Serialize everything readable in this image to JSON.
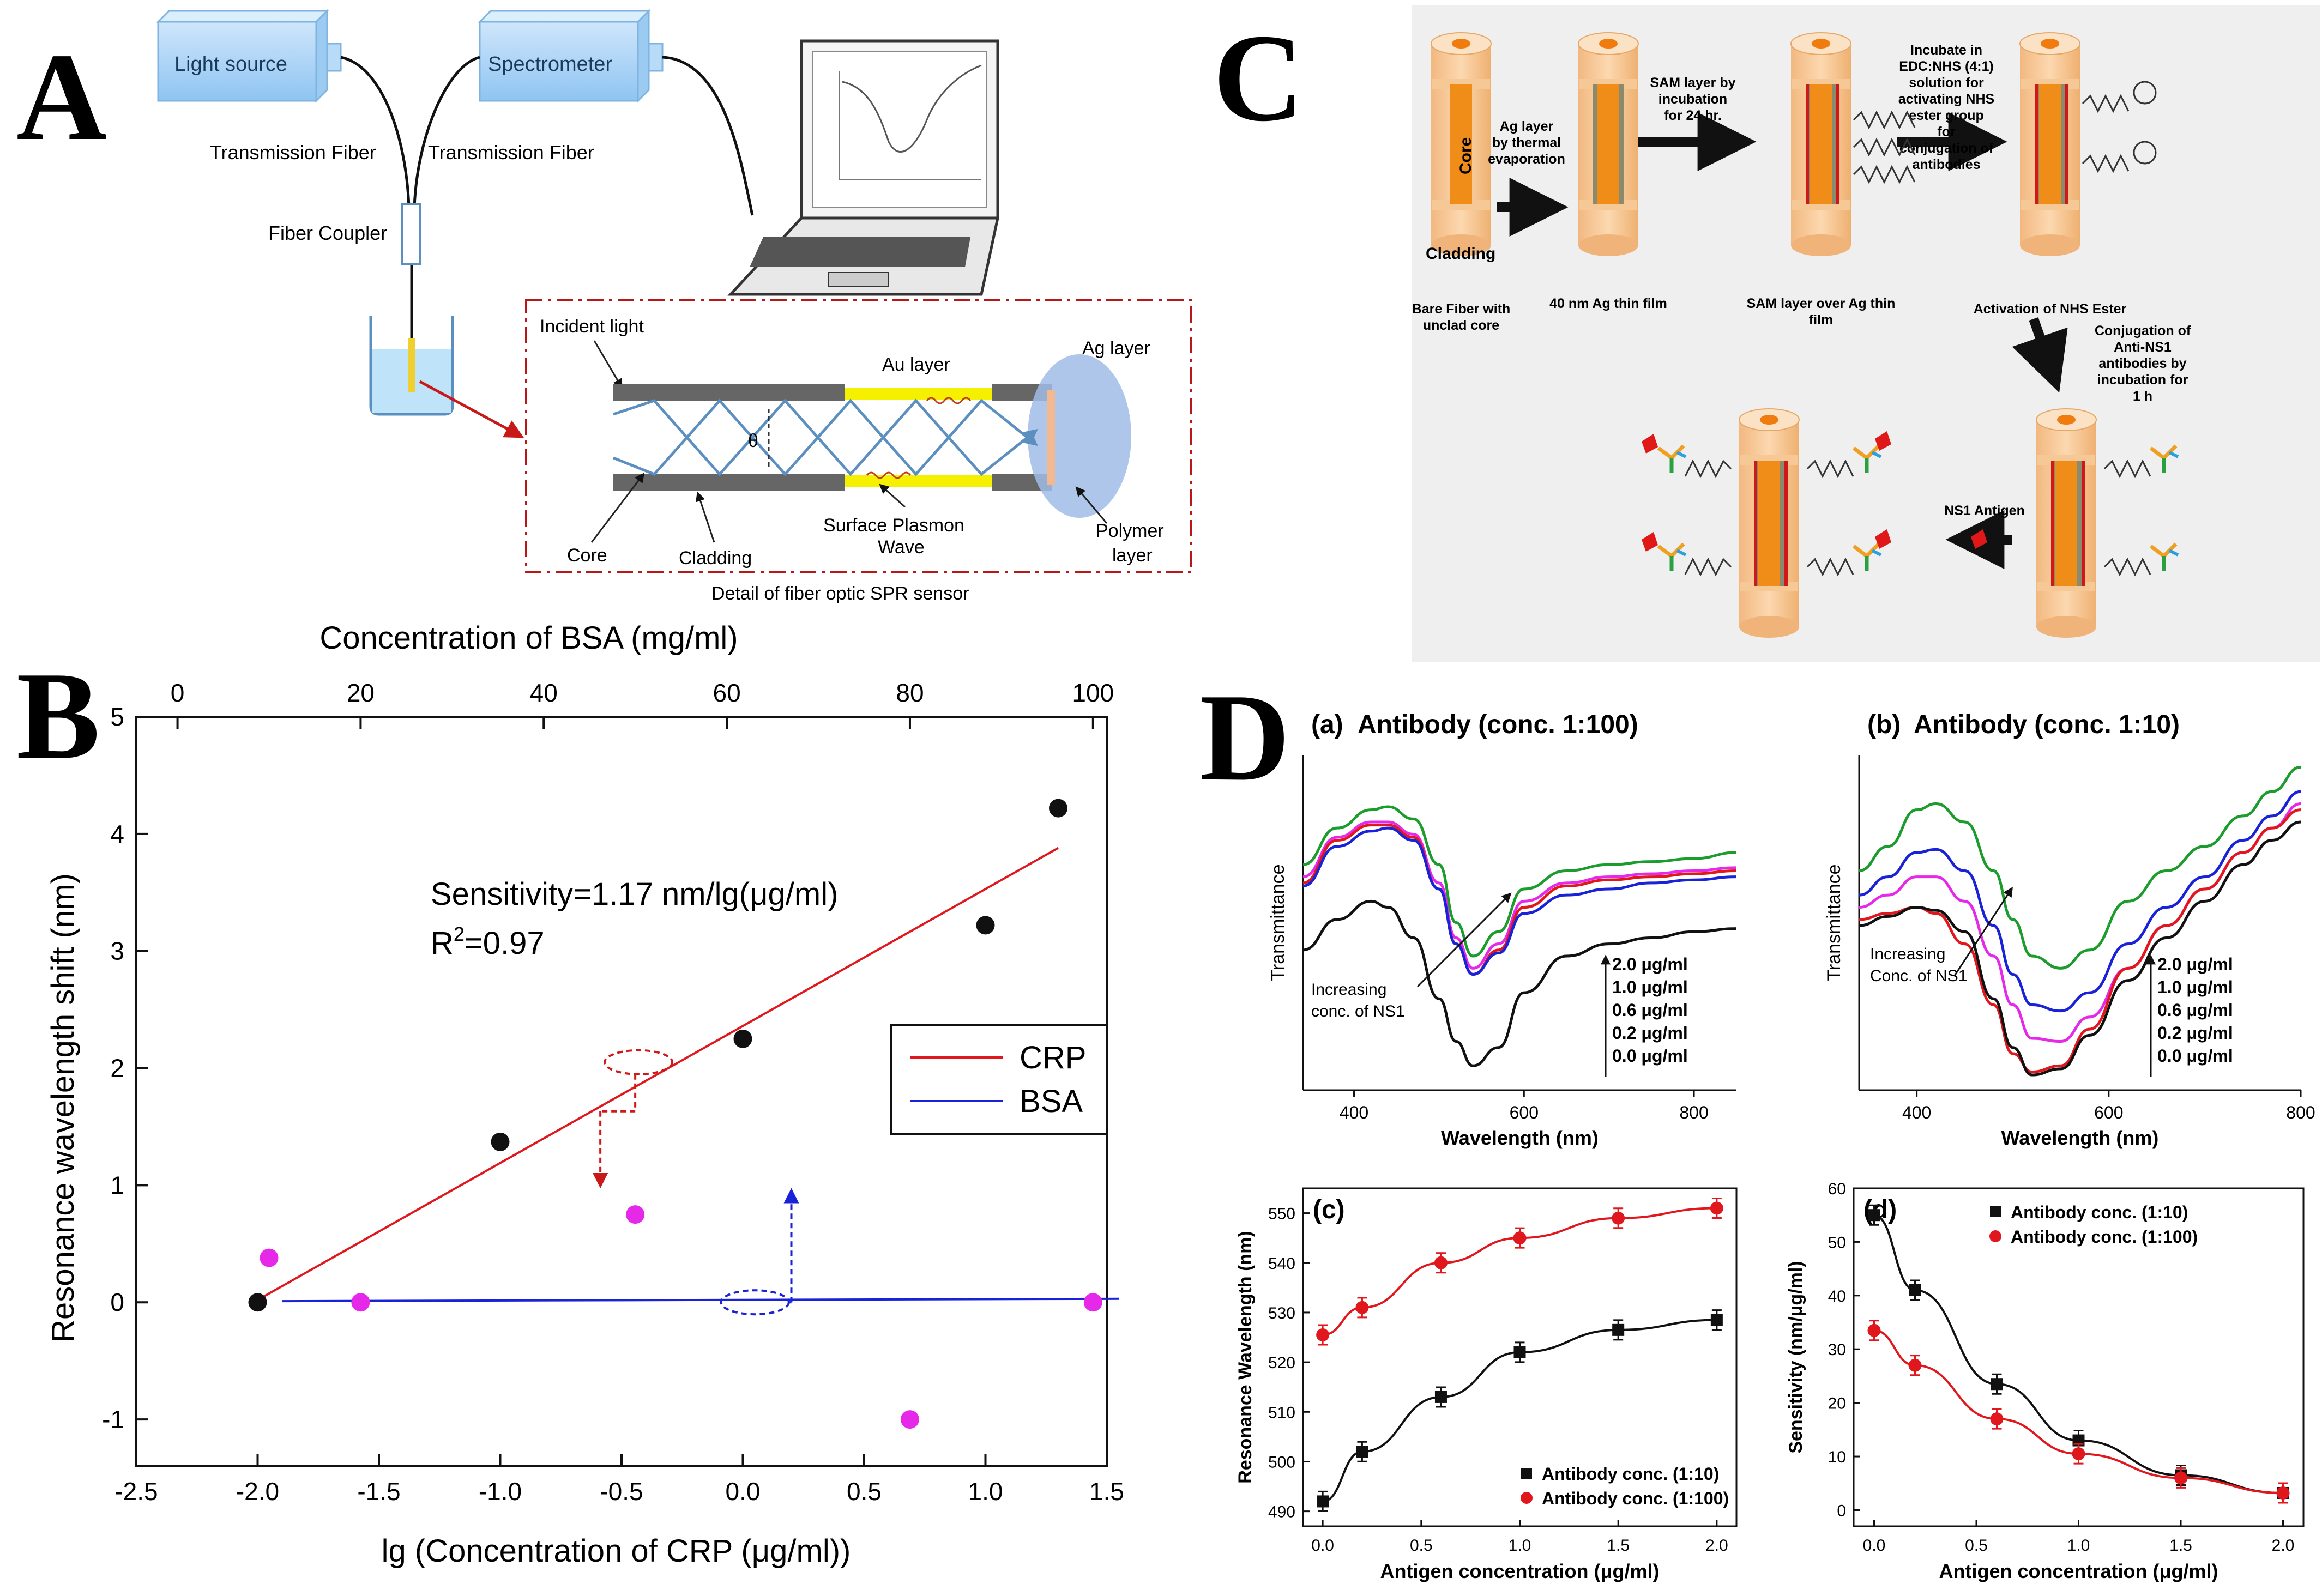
{
  "colors": {
    "red": "#e0181e",
    "black": "#111111",
    "blue": "#1a22d8",
    "magenta": "#e628e8",
    "green": "#1c9c2c",
    "orange": "#f08c18",
    "fiber": "#f8c898",
    "panel_gray": "#efefef"
  },
  "panel_letters": {
    "a": "A",
    "b": "B",
    "c": "C",
    "d": "D"
  },
  "panel_a": {
    "light_source": "Light source",
    "spectrometer": "Spectrometer",
    "transmission_fiber_left": "Transmission Fiber",
    "transmission_fiber_right": "Transmission Fiber",
    "fiber_coupler": "Fiber Coupler",
    "incident_light": "Incident light",
    "au_layer": "Au layer",
    "ag_layer": "Ag layer",
    "theta": "θ",
    "core": "Core",
    "cladding": "Cladding",
    "surface_plasmon_1": "Surface Plasmon",
    "surface_plasmon_2": "Wave",
    "polymer_1": "Polymer",
    "polymer_2": "layer",
    "caption": "Detail of fiber optic SPR sensor"
  },
  "panel_c": {
    "core": "Core",
    "cladding": "Cladding",
    "step1_caption": "Bare Fiber with unclad core",
    "arrow1": "Ag layer by thermal evaporation",
    "step2_caption": "40 nm Ag thin film",
    "arrow2": "SAM layer by incubation for 24 hr.",
    "step3_caption": "SAM layer over Ag thin film",
    "arrow3": "Incubate in EDC:NHS (4:1) solution for activating NHS ester group for conjugation of antibodies",
    "step4_caption": "Activation of NHS Ester",
    "arrow4": "Conjugation of Anti-NS1 antibodies by incubation for 1 h",
    "arrow5": "NS1 Antigen"
  },
  "chart_data": [
    {
      "id": "B",
      "type": "scatter",
      "xlabel": "lg (Concentration of CRP (μg/ml))",
      "ylabel": "Resonance wavelength shift (nm)",
      "top_xlabel": "Concentration of BSA (mg/ml)",
      "xlim": [
        -2.5,
        1.5
      ],
      "ylim": [
        -1.4,
        5
      ],
      "top_xlim": [
        -4.5,
        101.5
      ],
      "xticks": [
        "-2.5",
        "-2.0",
        "-1.5",
        "-1.0",
        "-0.5",
        "0.0",
        "0.5",
        "1.0",
        "1.5"
      ],
      "yticks": [
        "-1",
        "0",
        "1",
        "2",
        "3",
        "4",
        "5"
      ],
      "top_xticks": [
        "0",
        "20",
        "40",
        "60",
        "80",
        "100"
      ],
      "annotation_1": "Sensitivity=1.17 nm/lg(μg/ml)",
      "annotation_2_prefix": "R",
      "annotation_2_sup": "2",
      "annotation_2_suffix": "=0.97",
      "legend": [
        "CRP",
        "BSA"
      ],
      "series": [
        {
          "name": "CRP",
          "x": [
            -2.0,
            -1.0,
            0.0,
            1.0,
            1.3
          ],
          "y": [
            0.0,
            1.37,
            2.25,
            3.22,
            4.22
          ],
          "fit": {
            "x": [
              -2.0,
              1.3
            ],
            "y": [
              0.02,
              3.88
            ]
          }
        },
        {
          "name": "BSA",
          "x_top": [
            10,
            20,
            50,
            80,
            100
          ],
          "y": [
            0.38,
            0.0,
            0.75,
            -1.0,
            0.0
          ],
          "fit": {
            "x": [
              -1.9,
              1.55
            ],
            "y": [
              0.01,
              0.03
            ]
          }
        }
      ]
    },
    {
      "id": "D-a",
      "type": "line",
      "title": "Antibody (conc. 1:100)",
      "tag": "(a)",
      "xlabel": "Wavelength (nm)",
      "ylabel": "Transmittance",
      "xlim": [
        340,
        850
      ],
      "xticks": [
        "400",
        "600",
        "800"
      ],
      "legend": [
        "2.0 μg/ml",
        "1.0 μg/ml",
        "0.6 μg/ml",
        "0.2 μg/ml",
        "0.0 μg/ml"
      ],
      "annotation": "Increasing conc. of NS1",
      "annotation_line1": "Increasing",
      "annotation_line2": "conc. of NS1",
      "x": [
        340,
        380,
        420,
        440,
        470,
        500,
        520,
        540,
        570,
        600,
        650,
        700,
        750,
        800,
        850
      ],
      "series": [
        {
          "name": "2.0 μg/ml",
          "color": "green",
          "y": [
            0.74,
            0.86,
            0.92,
            0.93,
            0.89,
            0.74,
            0.55,
            0.44,
            0.52,
            0.66,
            0.72,
            0.74,
            0.75,
            0.76,
            0.78
          ]
        },
        {
          "name": "1.0 μg/ml",
          "color": "magenta",
          "y": [
            0.7,
            0.83,
            0.88,
            0.88,
            0.84,
            0.68,
            0.5,
            0.4,
            0.48,
            0.62,
            0.68,
            0.7,
            0.71,
            0.72,
            0.73
          ]
        },
        {
          "name": "0.6 μg/ml",
          "color": "red",
          "y": [
            0.68,
            0.82,
            0.87,
            0.87,
            0.83,
            0.66,
            0.48,
            0.38,
            0.46,
            0.6,
            0.67,
            0.69,
            0.7,
            0.71,
            0.72
          ]
        },
        {
          "name": "0.2 μg/ml",
          "color": "blue",
          "y": [
            0.67,
            0.8,
            0.85,
            0.86,
            0.82,
            0.66,
            0.48,
            0.38,
            0.45,
            0.58,
            0.64,
            0.66,
            0.68,
            0.69,
            0.7
          ]
        },
        {
          "name": "0.0 μg/ml",
          "color": "black",
          "y": [
            0.46,
            0.56,
            0.62,
            0.6,
            0.5,
            0.3,
            0.16,
            0.08,
            0.14,
            0.32,
            0.44,
            0.48,
            0.5,
            0.52,
            0.53
          ]
        }
      ]
    },
    {
      "id": "D-b",
      "type": "line",
      "title": "Antibody (conc. 1:10)",
      "tag": "(b)",
      "xlabel": "Wavelength (nm)",
      "ylabel": "Transmittance",
      "xlim": [
        340,
        800
      ],
      "xticks": [
        "400",
        "600",
        "800"
      ],
      "legend": [
        "2.0 μg/ml",
        "1.0 μg/ml",
        "0.6 μg/ml",
        "0.2 μg/ml",
        "0.0 μg/ml"
      ],
      "annotation": "Increasing Conc. of NS1",
      "annotation_line1": "Increasing",
      "annotation_line2": "Conc. of NS1",
      "x": [
        340,
        370,
        400,
        420,
        450,
        480,
        500,
        520,
        550,
        580,
        620,
        660,
        700,
        740,
        770,
        800
      ],
      "series": [
        {
          "name": "2.0 μg/ml",
          "color": "green",
          "y": [
            0.72,
            0.8,
            0.92,
            0.94,
            0.88,
            0.72,
            0.56,
            0.44,
            0.4,
            0.46,
            0.62,
            0.72,
            0.8,
            0.9,
            0.98,
            1.06
          ]
        },
        {
          "name": "1.0 μg/ml",
          "color": "blue",
          "y": [
            0.64,
            0.7,
            0.78,
            0.79,
            0.72,
            0.54,
            0.38,
            0.28,
            0.26,
            0.32,
            0.48,
            0.6,
            0.7,
            0.82,
            0.9,
            0.98
          ]
        },
        {
          "name": "0.6 μg/ml",
          "color": "magenta",
          "y": [
            0.6,
            0.64,
            0.7,
            0.7,
            0.62,
            0.44,
            0.28,
            0.17,
            0.16,
            0.24,
            0.4,
            0.54,
            0.66,
            0.78,
            0.86,
            0.94
          ]
        },
        {
          "name": "0.2 μg/ml",
          "color": "red",
          "y": [
            0.56,
            0.58,
            0.6,
            0.58,
            0.48,
            0.28,
            0.12,
            0.06,
            0.08,
            0.2,
            0.4,
            0.54,
            0.66,
            0.78,
            0.86,
            0.92
          ]
        },
        {
          "name": "0.0 μg/ml",
          "color": "black",
          "y": [
            0.54,
            0.57,
            0.6,
            0.59,
            0.52,
            0.3,
            0.14,
            0.05,
            0.07,
            0.18,
            0.36,
            0.5,
            0.62,
            0.74,
            0.82,
            0.88
          ]
        }
      ]
    },
    {
      "id": "D-c",
      "type": "line",
      "tag": "(c)",
      "xlabel": "Antigen concentration (μg/ml)",
      "ylabel": "Resonance Wavelength (nm)",
      "xlim": [
        -0.1,
        2.1
      ],
      "ylim": [
        487,
        555
      ],
      "xticks": [
        "0.0",
        "0.5",
        "1.0",
        "1.5",
        "2.0"
      ],
      "yticks": [
        "490",
        "500",
        "510",
        "520",
        "530",
        "540",
        "550"
      ],
      "legend": [
        "Antibody conc. (1:10)",
        "Antibody conc. (1:100)"
      ],
      "series": [
        {
          "name": "Antibody conc. (1:10)",
          "color": "black",
          "marker": "square",
          "x": [
            0.0,
            0.2,
            0.6,
            1.0,
            1.5,
            2.0
          ],
          "y": [
            492,
            502,
            513,
            522,
            526.5,
            528.5
          ]
        },
        {
          "name": "Antibody conc. (1:100)",
          "color": "red",
          "marker": "circle",
          "x": [
            0.0,
            0.2,
            0.6,
            1.0,
            1.5,
            2.0
          ],
          "y": [
            525.5,
            531,
            540,
            545,
            549,
            551
          ]
        }
      ]
    },
    {
      "id": "D-d",
      "type": "line",
      "tag": "(d)",
      "xlabel": "Antigen concentration (μg/ml)",
      "ylabel": "Sensitivity (nm/μg/ml)",
      "xlim": [
        -0.1,
        2.1
      ],
      "ylim": [
        -3,
        60
      ],
      "xticks": [
        "0.0",
        "0.5",
        "1.0",
        "1.5",
        "2.0"
      ],
      "yticks": [
        "0",
        "10",
        "20",
        "30",
        "40",
        "50",
        "60"
      ],
      "legend": [
        "Antibody conc. (1:10)",
        "Antibody conc. (1:100)"
      ],
      "series": [
        {
          "name": "Antibody conc. (1:10)",
          "color": "black",
          "marker": "square",
          "x": [
            0.0,
            0.2,
            0.6,
            1.0,
            1.5,
            2.0
          ],
          "y": [
            55,
            41,
            23.5,
            13,
            6.5,
            3.2
          ]
        },
        {
          "name": "Antibody conc. (1:100)",
          "color": "red",
          "marker": "circle",
          "x": [
            0.0,
            0.2,
            0.6,
            1.0,
            1.5,
            2.0
          ],
          "y": [
            33.5,
            27,
            17,
            10.5,
            6,
            3.2
          ]
        }
      ]
    }
  ]
}
